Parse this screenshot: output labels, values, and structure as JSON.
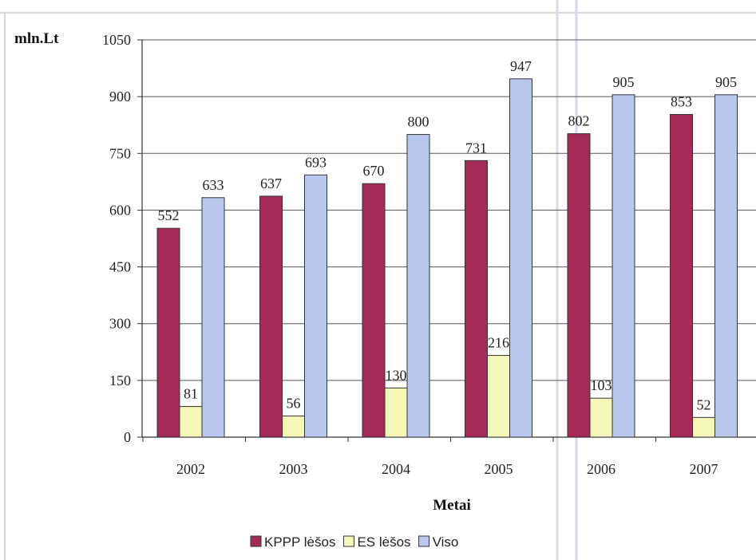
{
  "chart_data": {
    "type": "bar",
    "ylabel": "mln.Lt",
    "xlabel": "Metai",
    "ylim": [
      0,
      1050
    ],
    "yticks": [
      0,
      150,
      300,
      450,
      600,
      750,
      900,
      1050
    ],
    "grid": true,
    "legend_position": "bottom",
    "categories": [
      "2002",
      "2003",
      "2004",
      "2005",
      "2006",
      "2007"
    ],
    "series": [
      {
        "name": "KPPP lėšos",
        "color": "#a52a58",
        "values": [
          552,
          637,
          670,
          731,
          802,
          853
        ]
      },
      {
        "name": "ES lėšos",
        "color": "#f5f7b8",
        "values": [
          81,
          56,
          130,
          216,
          103,
          52
        ]
      },
      {
        "name": "Viso",
        "color": "#b9c8ee",
        "values": [
          633,
          693,
          800,
          947,
          905,
          905
        ]
      }
    ]
  }
}
